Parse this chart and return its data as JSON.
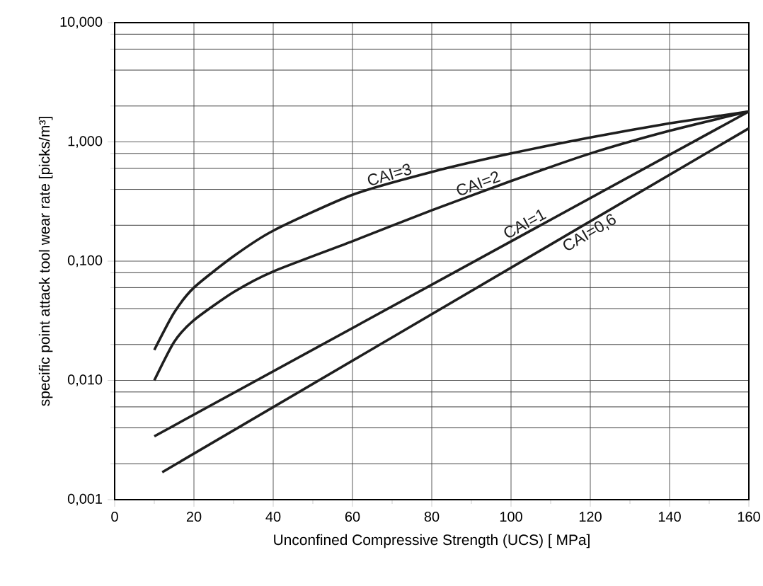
{
  "chart_data": {
    "type": "line",
    "xlabel": "Unconfined Compressive Strength (UCS) [ MPa]",
    "ylabel": "specific point attack tool wear rate [picks/m³]",
    "log": "y",
    "grid": true,
    "line_style": "solid",
    "xlim": [
      0,
      160
    ],
    "xticks": [
      0,
      20,
      40,
      60,
      80,
      100,
      120,
      140,
      160
    ],
    "ylim": [
      0.001,
      10
    ],
    "yticks": [
      {
        "value": 0.001,
        "label": "0,001"
      },
      {
        "value": 0.01,
        "label": "0,010"
      },
      {
        "value": 0.1,
        "label": "0,100"
      },
      {
        "value": 1,
        "label": "1,000"
      },
      {
        "value": 10,
        "label": "10,000"
      }
    ],
    "series": [
      {
        "name": "CAI=3",
        "color": "#1e1e1e",
        "x": [
          10,
          15,
          20,
          30,
          40,
          60,
          80,
          100,
          120,
          140,
          160
        ],
        "values": [
          0.018,
          0.037,
          0.06,
          0.11,
          0.18,
          0.36,
          0.56,
          0.8,
          1.09,
          1.43,
          1.8
        ]
      },
      {
        "name": "CAI=2",
        "color": "#1e1e1e",
        "x": [
          10,
          15,
          20,
          30,
          40,
          60,
          80,
          100,
          120,
          140,
          160
        ],
        "values": [
          0.01,
          0.021,
          0.032,
          0.055,
          0.082,
          0.147,
          0.267,
          0.47,
          0.8,
          1.24,
          1.8
        ]
      },
      {
        "name": "CAI=1",
        "color": "#1e1e1e",
        "x": [
          10,
          160
        ],
        "values": [
          0.0034,
          1.8
        ]
      },
      {
        "name": "CAI=0,6",
        "color": "#1e1e1e",
        "x": [
          12,
          160
        ],
        "values": [
          0.0017,
          1.3
        ]
      }
    ]
  }
}
